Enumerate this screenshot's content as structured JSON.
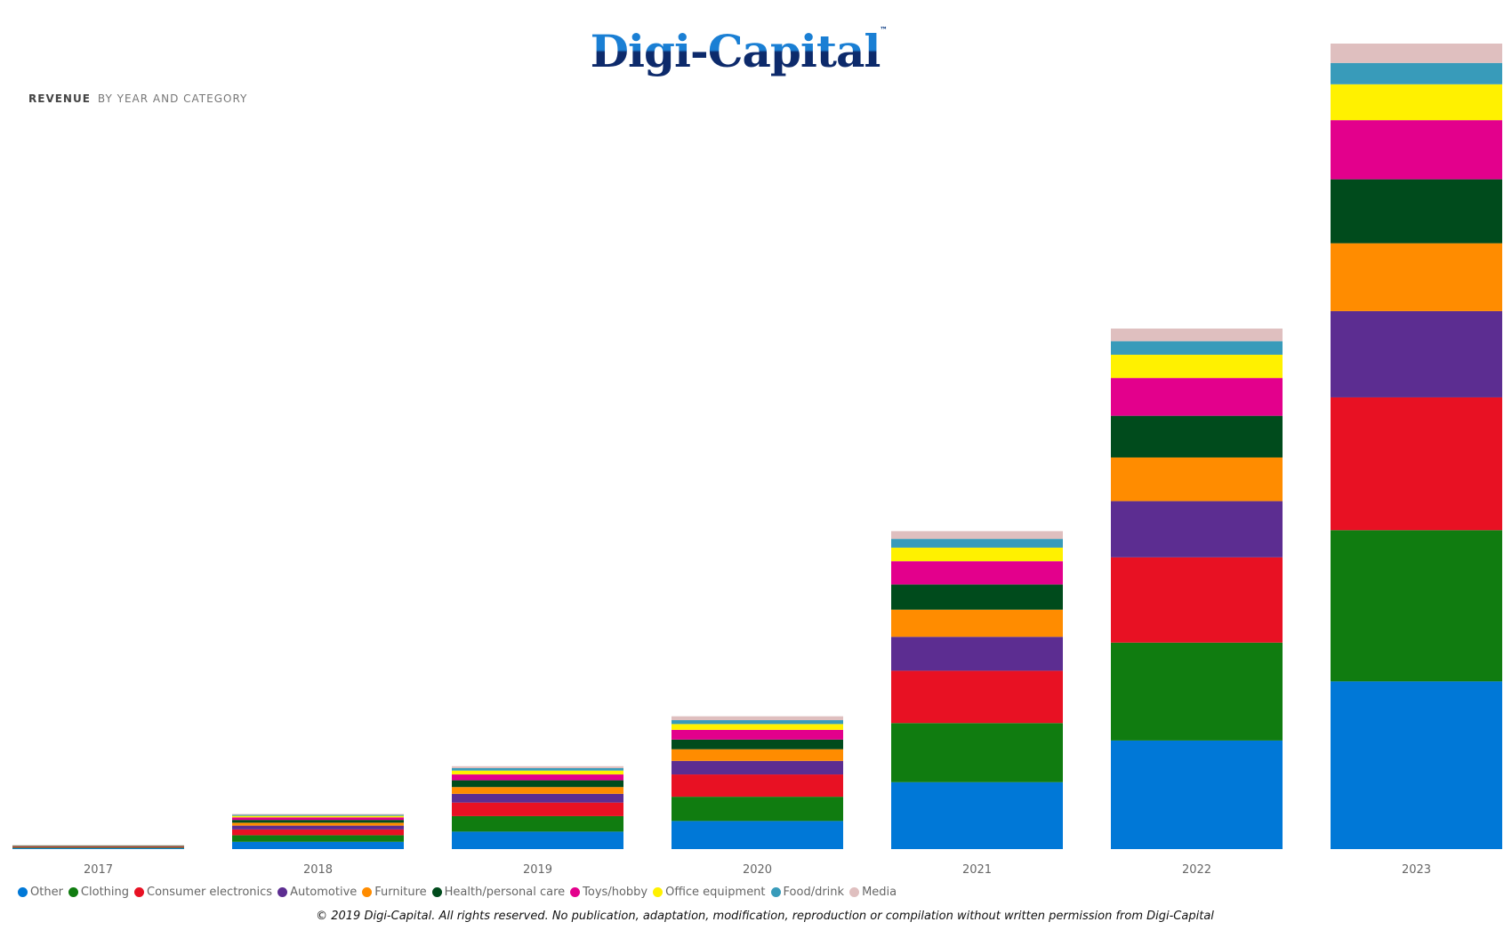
{
  "logo": {
    "text": "Digi-Capital",
    "tm": "™"
  },
  "header": {
    "title_bold": "REVENUE",
    "title_rest": "BY YEAR AND CATEGORY"
  },
  "footer": {
    "copyright": "© 2019 Digi-Capital. All rights reserved. No publication, adaptation, modification, reproduction or compilation without written permission from Digi-Capital"
  },
  "chart_data": {
    "type": "bar",
    "stacked": true,
    "title": "REVENUE BY YEAR AND CATEGORY",
    "categories": [
      "2017",
      "2018",
      "2019",
      "2020",
      "2021",
      "2022",
      "2023"
    ],
    "ylim": [
      0,
      831
    ],
    "y_axis_visible": false,
    "grid": false,
    "legend_placement": "bottom-left",
    "series": [
      {
        "name": "Other",
        "color": "#0078D7",
        "values": [
          0.85,
          7.5,
          18,
          29,
          69,
          112,
          173
        ]
      },
      {
        "name": "Clothing",
        "color": "#107C10",
        "values": [
          0.75,
          6.8,
          16,
          25,
          61,
          101,
          156
        ]
      },
      {
        "name": "Consumer electronics",
        "color": "#E81123",
        "values": [
          0.65,
          6,
          14,
          23,
          54,
          88,
          137
        ]
      },
      {
        "name": "Automotive",
        "color": "#5C2D91",
        "values": [
          0.43,
          3.9,
          9,
          14,
          35,
          58,
          89
        ]
      },
      {
        "name": "Furniture",
        "color": "#FF8C00",
        "values": [
          0.34,
          3,
          7,
          12,
          28,
          45,
          70
        ]
      },
      {
        "name": "Health/personal care",
        "color": "#004B1C",
        "values": [
          0.32,
          2.9,
          7,
          10,
          26,
          43,
          66
        ]
      },
      {
        "name": "Toys/hobby",
        "color": "#E3008C",
        "values": [
          0.29,
          2.6,
          6,
          10,
          24,
          39,
          61
        ]
      },
      {
        "name": "Office equipment",
        "color": "#FFF100",
        "values": [
          0.18,
          1.6,
          4,
          6,
          14,
          24,
          37
        ]
      },
      {
        "name": "Food/drink",
        "color": "#389BBA",
        "values": [
          0.1,
          1,
          2.5,
          4,
          9,
          14,
          22
        ]
      },
      {
        "name": "Media",
        "color": "#DFBFBF",
        "values": [
          0.1,
          0.9,
          2,
          4,
          8,
          13,
          20
        ]
      }
    ]
  }
}
